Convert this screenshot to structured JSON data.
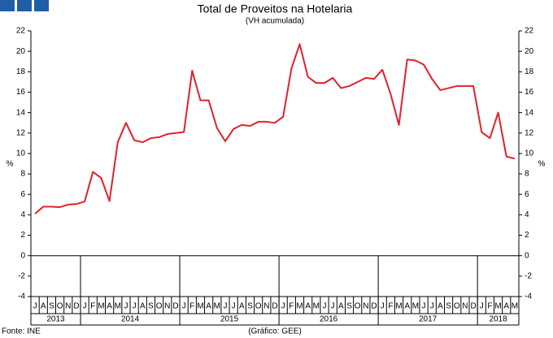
{
  "chart_data": {
    "type": "line",
    "title": "Total de Proveitos na Hotelaria",
    "subtitle": "(VH acumulada)",
    "y_label": "%",
    "y2_label": "%",
    "categories": [
      "J",
      "A",
      "S",
      "O",
      "N",
      "D",
      "J",
      "F",
      "M",
      "A",
      "M",
      "J",
      "J",
      "A",
      "S",
      "O",
      "N",
      "D",
      "J",
      "F",
      "M",
      "A",
      "M",
      "J",
      "J",
      "A",
      "S",
      "O",
      "N",
      "D",
      "J",
      "F",
      "M",
      "A",
      "M",
      "J",
      "J",
      "A",
      "S",
      "O",
      "N",
      "D",
      "J",
      "F",
      "M",
      "A",
      "M",
      "J",
      "J",
      "A",
      "S",
      "O",
      "N",
      "D",
      "J",
      "F",
      "M",
      "A",
      "M"
    ],
    "years": [
      "2013",
      "2014",
      "2015",
      "2016",
      "2017",
      "2018"
    ],
    "series": [
      {
        "name": "Total de Proveitos",
        "color": "#e3202a",
        "values": [
          4.1,
          4.8,
          4.8,
          4.75,
          5.0,
          5.05,
          5.3,
          8.2,
          7.6,
          5.35,
          11.1,
          13.0,
          11.3,
          11.1,
          11.5,
          11.6,
          11.9,
          12.0,
          12.1,
          18.1,
          15.2,
          15.2,
          12.5,
          11.2,
          12.4,
          12.8,
          12.7,
          13.1,
          13.1,
          13.0,
          13.6,
          18.3,
          20.7,
          17.5,
          16.9,
          16.9,
          17.4,
          16.4,
          16.6,
          17.0,
          17.4,
          17.3,
          18.2,
          15.8,
          12.8,
          19.2,
          19.1,
          18.7,
          17.3,
          16.2,
          16.4,
          16.6,
          16.6,
          16.6,
          12.1,
          11.5,
          14.0,
          9.7,
          9.5
        ]
      }
    ],
    "ylim": [
      -4,
      22
    ],
    "yticks": [
      -4,
      -2,
      0,
      2,
      4,
      6,
      8,
      10,
      12,
      14,
      16,
      18,
      20,
      22
    ],
    "source": "Fonte: INE",
    "credit": "(Gráfico: GEE)"
  }
}
